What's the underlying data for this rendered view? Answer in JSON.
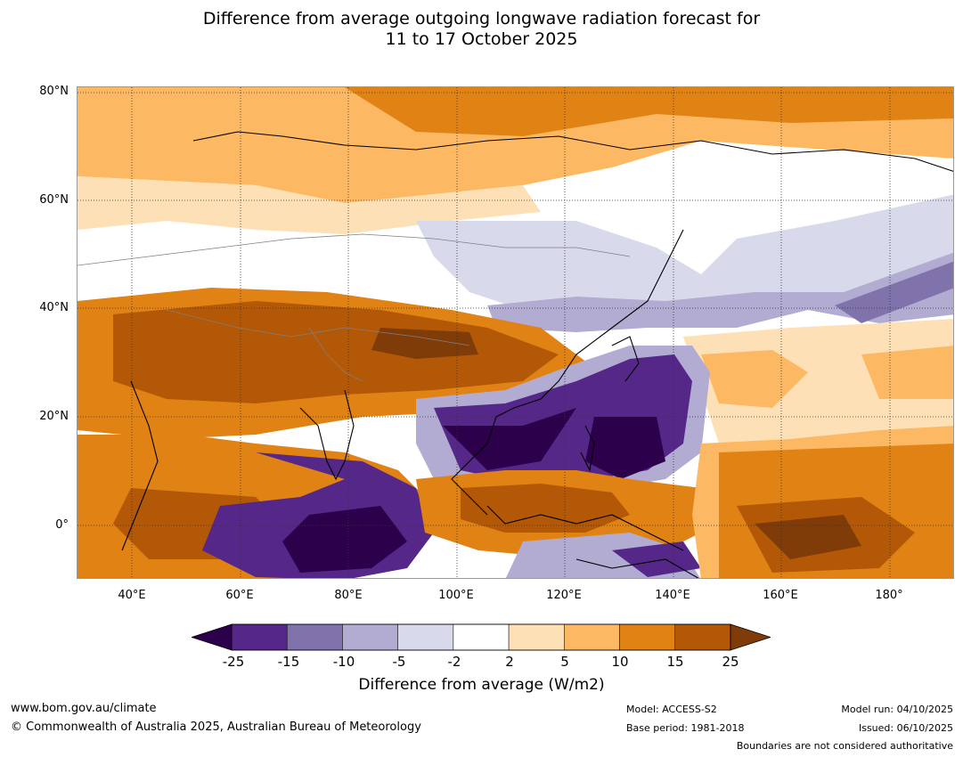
{
  "title": {
    "line1": "Difference from average outgoing longwave radiation forecast for",
    "line2": "11 to 17 October 2025"
  },
  "map": {
    "latitude_labels": [
      "80°N",
      "60°N",
      "40°N",
      "20°N",
      "0°"
    ],
    "longitude_labels": [
      "40°E",
      "60°E",
      "80°E",
      "100°E",
      "120°E",
      "140°E",
      "160°E",
      "180°"
    ],
    "palette": {
      "neg25": "#2d004b",
      "neg15": "#542788",
      "neg10": "#8073ac",
      "neg5": "#b2abd2",
      "neg2": "#d8daeb",
      "zero": "#ffffff",
      "pos2": "#fee0b6",
      "pos5": "#fdb863",
      "pos10": "#e08214",
      "pos15": "#b35806",
      "pos25": "#7f3b08",
      "coast": "#000000",
      "border": "#808080",
      "grid": "#333333"
    }
  },
  "colorbar": {
    "ticks": [
      "-25",
      "-15",
      "-10",
      "-5",
      "-2",
      "2",
      "5",
      "10",
      "15",
      "25"
    ],
    "bins": [
      "#542788",
      "#8073ac",
      "#b2abd2",
      "#d8daeb",
      "#ffffff",
      "#fee0b6",
      "#fdb863",
      "#e08214",
      "#b35806"
    ],
    "low_extend": "#2d004b",
    "high_extend": "#7f3b08",
    "label": "Difference from average (W/m2)"
  },
  "footer": {
    "url": "www.bom.gov.au/climate",
    "copyright": "© Commonwealth of Australia 2025, Australian Bureau of Meteorology",
    "model": "Model: ACCESS-S2",
    "base_period": "Base period: 1981-2018",
    "model_run": "Model run: 04/10/2025",
    "issued": "Issued: 06/10/2025",
    "disclaimer": "Boundaries are not considered authoritative"
  }
}
